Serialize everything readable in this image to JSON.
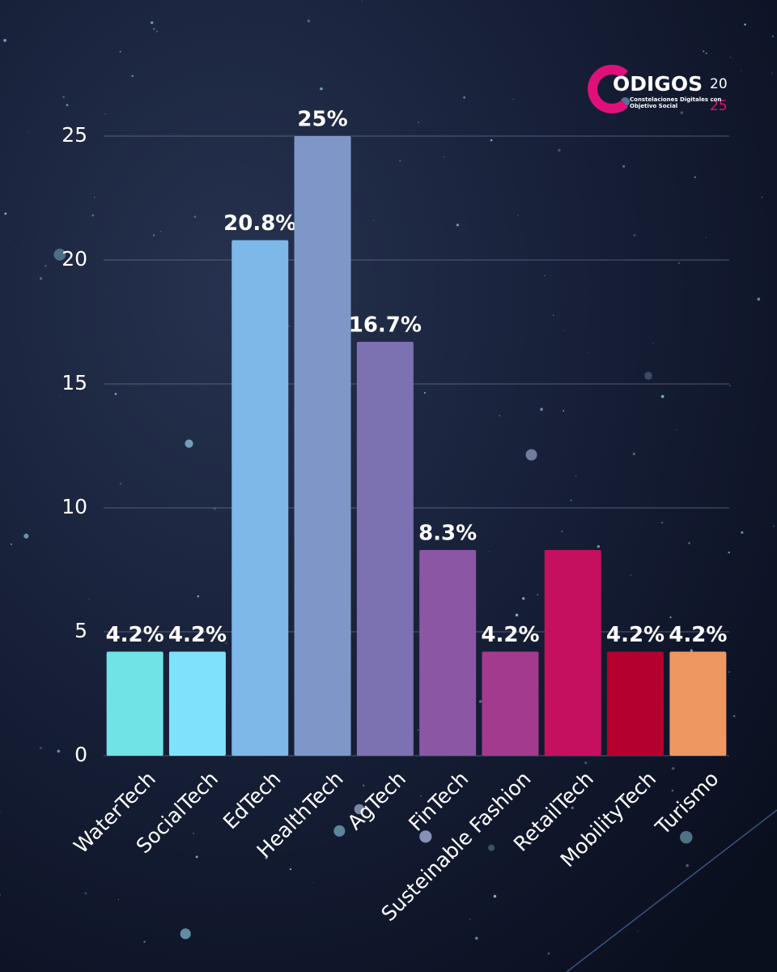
{
  "chart_data": {
    "type": "bar",
    "logo": {
      "letter": "C",
      "name": "ODIGOS",
      "year_top": "20",
      "year_bottom": "25",
      "tagline": [
        "Constelaciones Digitales con",
        "Objetivo Social"
      ]
    },
    "categories": [
      "WaterTech",
      "SocialTech",
      "EdTech",
      "HealthTech",
      "AgTech",
      "FinTech",
      "Susteinable Fashion",
      "RetailTech",
      "MobilityTech",
      "Turismo"
    ],
    "values": [
      4.2,
      4.2,
      20.8,
      25,
      16.7,
      8.3,
      4.2,
      8.3,
      4.2,
      4.2
    ],
    "value_labels": [
      "4.2%",
      "4.2%",
      "20.8%",
      "25%",
      "16.7%",
      "8.3%",
      "4.2%",
      null,
      "4.2%",
      "4.2%"
    ],
    "colors": [
      "#6fe3e6",
      "#7fe1fb",
      "#7db8e9",
      "#7f97c8",
      "#7c71b1",
      "#8b56a4",
      "#a33a8d",
      "#c5105f",
      "#b4002f",
      "#ee9761"
    ],
    "ylim": [
      0,
      25
    ],
    "yticks": [
      0,
      5,
      10,
      15,
      20,
      25
    ],
    "grid": true
  }
}
